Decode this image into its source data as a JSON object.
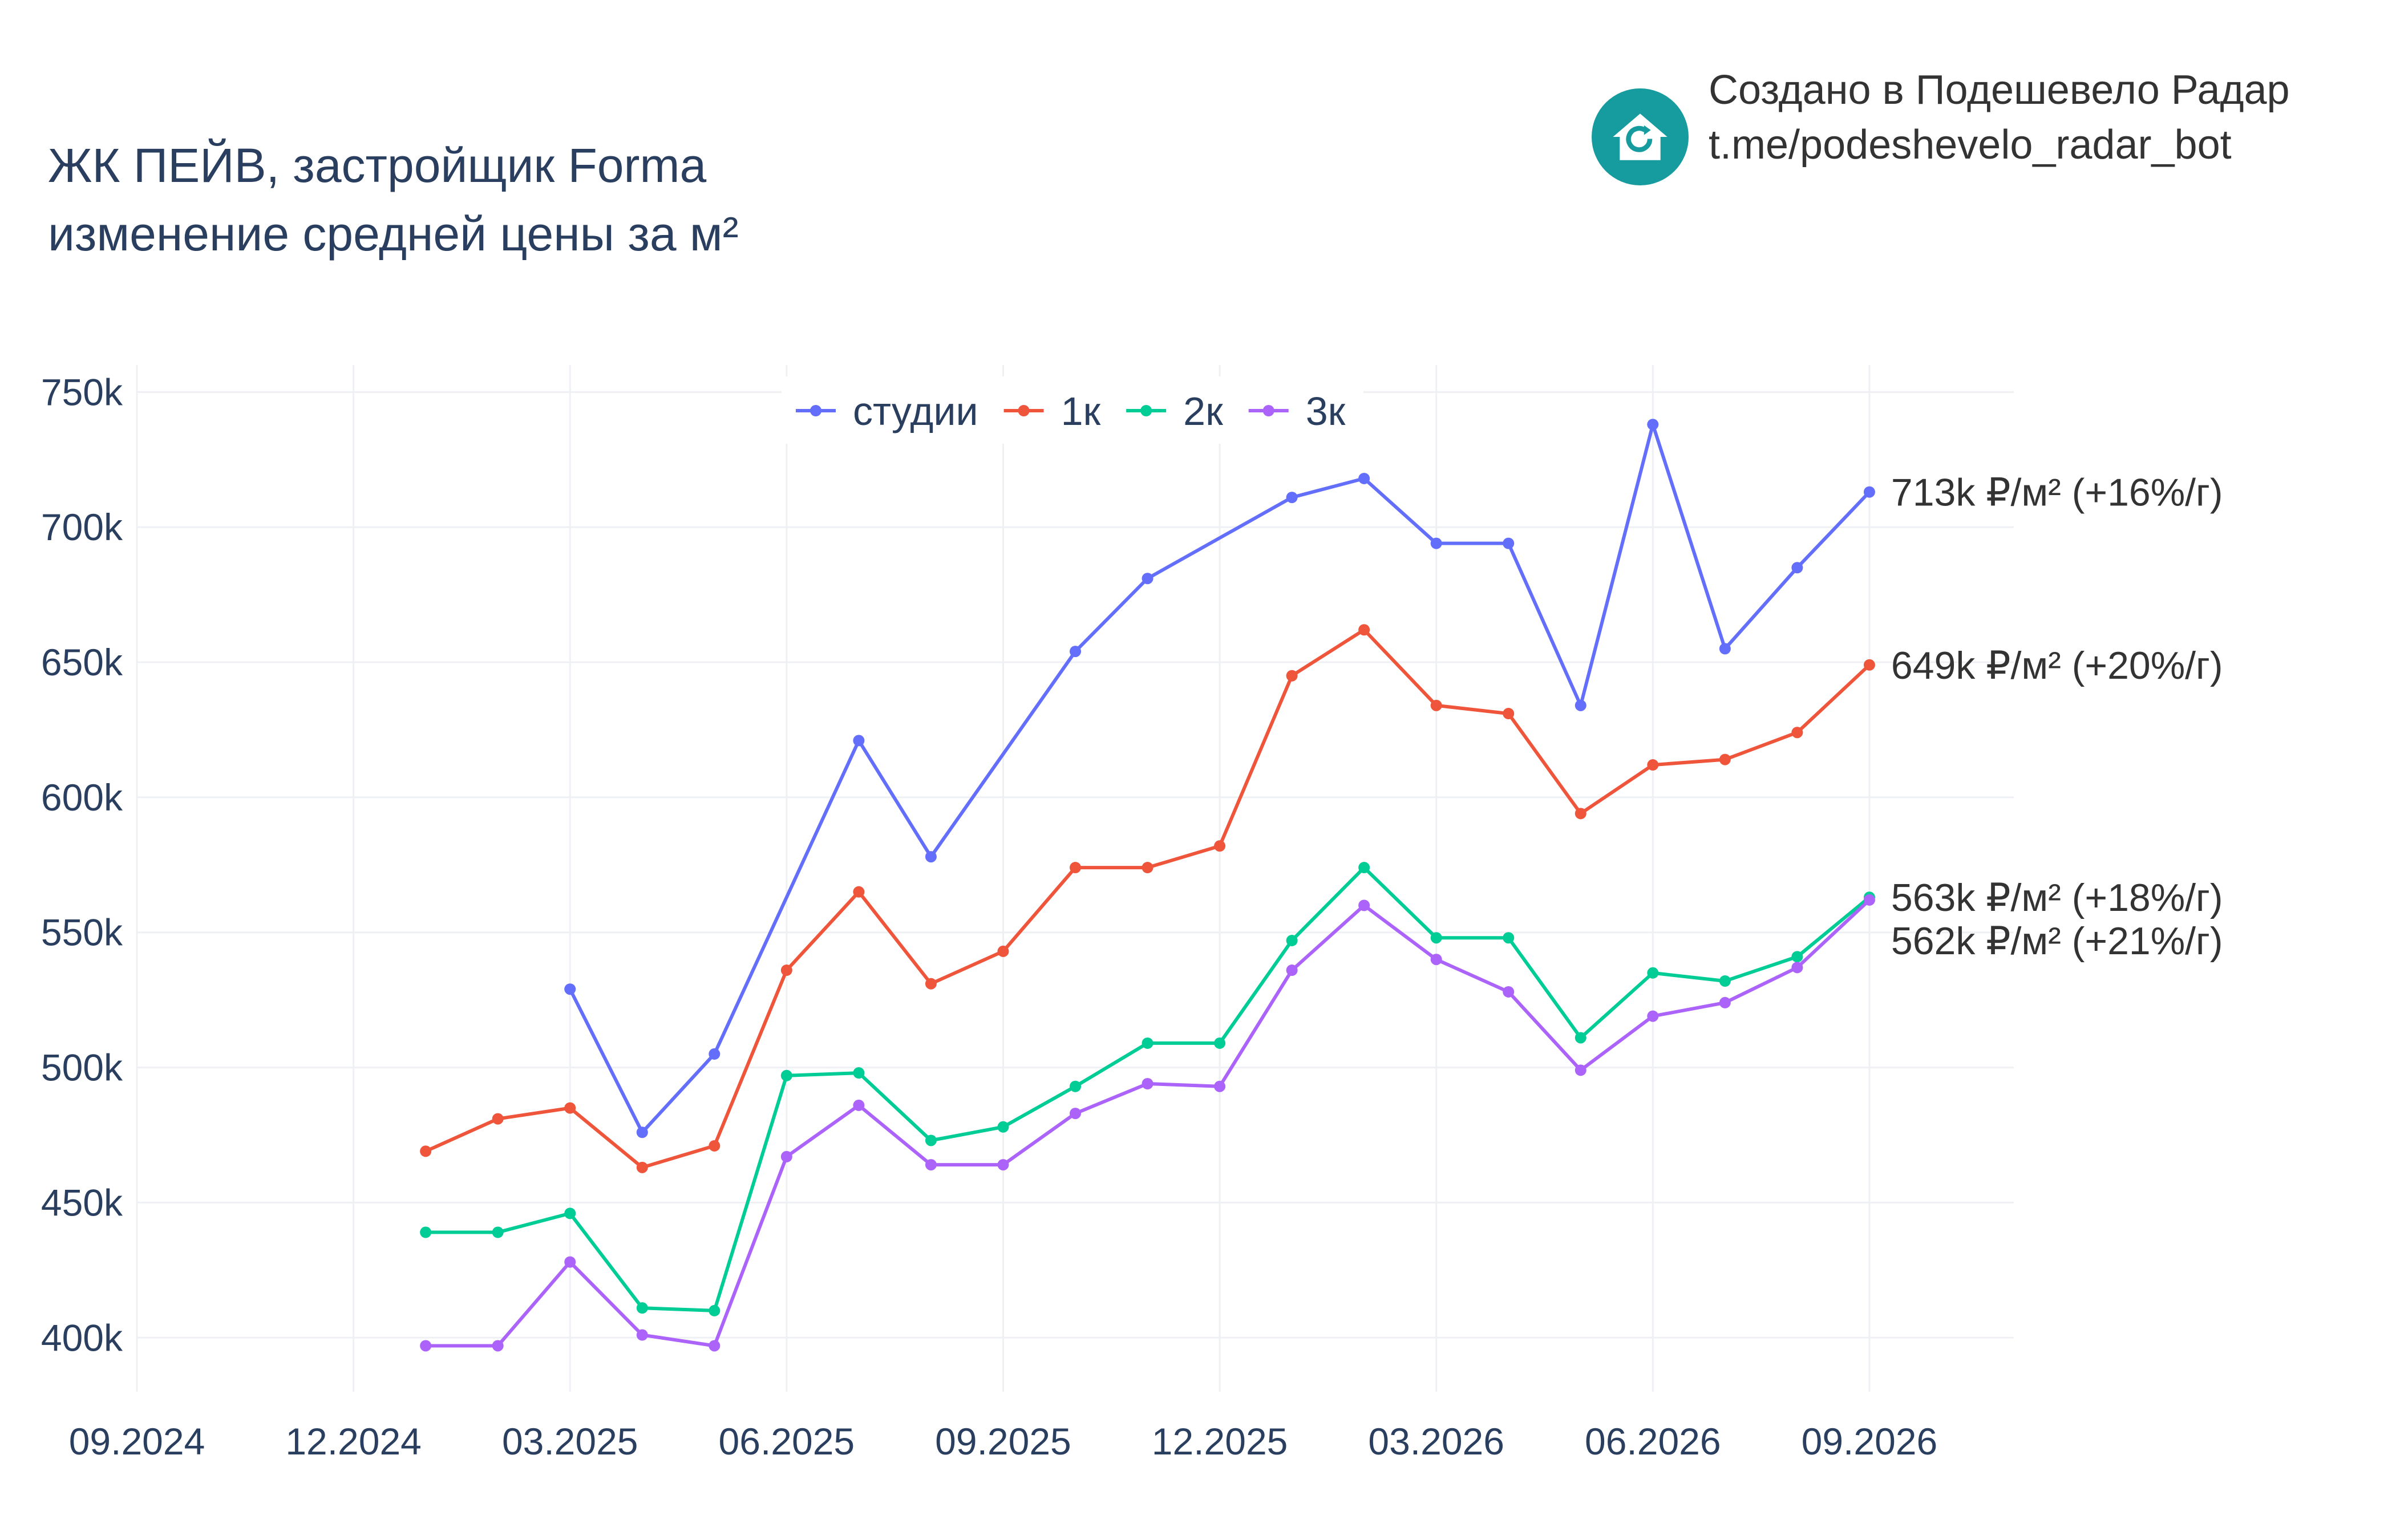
{
  "title": {
    "line1": "ЖК ПЕЙВ, застройщик Forma",
    "line2": "изменение средней цены за м²"
  },
  "brand": {
    "line1": "Создано в Подешевело Радар",
    "line2": "t.me/podeshevelo_radar_bot",
    "logo_icon": "house-refresh-icon",
    "logo_color": "#169c9f"
  },
  "chart_data": {
    "type": "line",
    "x": [
      "2025-01",
      "2025-02",
      "2025-03",
      "2025-04",
      "2025-05",
      "2025-06",
      "2025-07",
      "2025-08",
      "2025-09",
      "2025-10",
      "2025-11",
      "2025-12",
      "2026-01",
      "2026-02",
      "2026-03",
      "2026-04",
      "2026-05",
      "2026-06",
      "2026-07",
      "2026-08",
      "2026-09"
    ],
    "x_ticks": [
      {
        "date": "2024-09",
        "label": "09.2024"
      },
      {
        "date": "2024-12",
        "label": "12.2024"
      },
      {
        "date": "2025-03",
        "label": "03.2025"
      },
      {
        "date": "2025-06",
        "label": "06.2025"
      },
      {
        "date": "2025-09",
        "label": "09.2025"
      },
      {
        "date": "2025-12",
        "label": "12.2025"
      },
      {
        "date": "2026-03",
        "label": "03.2026"
      },
      {
        "date": "2026-06",
        "label": "06.2026"
      },
      {
        "date": "2026-09",
        "label": "09.2026"
      }
    ],
    "y_ticks": [
      {
        "value": 400000,
        "label": "400k"
      },
      {
        "value": 450000,
        "label": "450k"
      },
      {
        "value": 500000,
        "label": "500k"
      },
      {
        "value": 550000,
        "label": "550k"
      },
      {
        "value": 600000,
        "label": "600k"
      },
      {
        "value": 650000,
        "label": "650k"
      },
      {
        "value": 700000,
        "label": "700k"
      },
      {
        "value": 750000,
        "label": "750k"
      }
    ],
    "ylim": [
      380000,
      760000
    ],
    "xlim": [
      "2024-09",
      "2026-11"
    ],
    "grid": true,
    "legend_position": "top-center",
    "series": [
      {
        "name": "студии",
        "color": "#636efa",
        "values": [
          null,
          null,
          529000,
          476000,
          505000,
          null,
          621000,
          578000,
          null,
          654000,
          681000,
          null,
          711000,
          718000,
          694000,
          694000,
          634000,
          738000,
          655000,
          685000,
          713000
        ],
        "end_label": "713k ₽/м² (+16%/г)"
      },
      {
        "name": "1к",
        "color": "#ef553b",
        "values": [
          469000,
          481000,
          485000,
          463000,
          471000,
          536000,
          565000,
          531000,
          543000,
          574000,
          574000,
          582000,
          645000,
          662000,
          634000,
          631000,
          594000,
          612000,
          614000,
          624000,
          649000
        ],
        "end_label": "649k ₽/м² (+20%/г)"
      },
      {
        "name": "2к",
        "color": "#00cc96",
        "values": [
          439000,
          439000,
          446000,
          411000,
          410000,
          497000,
          498000,
          473000,
          478000,
          493000,
          509000,
          509000,
          547000,
          574000,
          548000,
          548000,
          511000,
          535000,
          532000,
          541000,
          563000
        ],
        "end_label": "563k ₽/м² (+18%/г)"
      },
      {
        "name": "3к",
        "color": "#ab63fa",
        "values": [
          397000,
          397000,
          428000,
          401000,
          397000,
          467000,
          486000,
          464000,
          464000,
          483000,
          494000,
          493000,
          536000,
          560000,
          540000,
          528000,
          499000,
          519000,
          524000,
          537000,
          562000
        ],
        "end_label": "562k ₽/м² (+21%/г)"
      }
    ]
  }
}
